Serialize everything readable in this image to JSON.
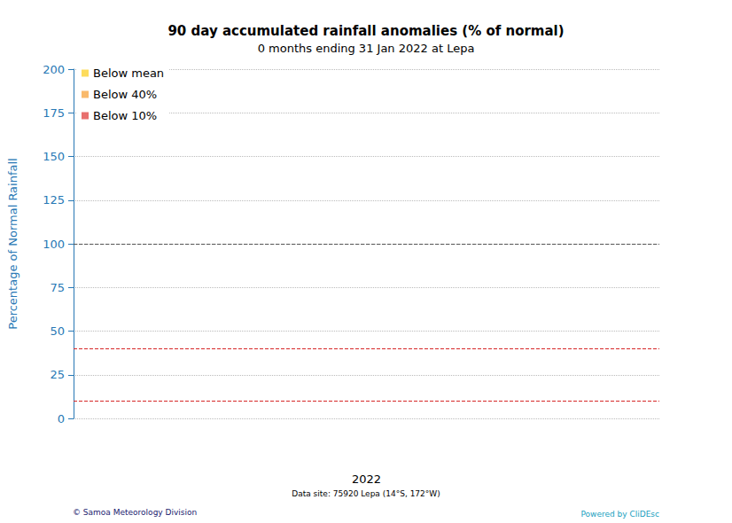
{
  "chart_data": {
    "type": "bar",
    "title": "90 day accumulated rainfall anomalies (% of normal)",
    "subtitle": "0 months ending 31 Jan 2022 at Lepa",
    "ylabel": "Percentage of Normal Rainfall",
    "categories": [
      "2022"
    ],
    "series": [
      {
        "name": "Below mean",
        "color": "#fddc5c",
        "values": [
          null
        ]
      },
      {
        "name": "Below 40%",
        "color": "#f9b96b",
        "values": [
          null
        ]
      },
      {
        "name": "Below 10%",
        "color": "#e8706e",
        "values": [
          null
        ]
      }
    ],
    "reference_lines": [
      {
        "value": 100,
        "color": "#555555",
        "line_style": "dashed"
      },
      {
        "value": 40,
        "color": "#d62728",
        "line_style": "dashed"
      },
      {
        "value": 10,
        "color": "#d62728",
        "line_style": "dashed"
      }
    ],
    "ylim": [
      0,
      200
    ],
    "yticks": [
      0,
      25,
      50,
      75,
      100,
      125,
      150,
      175,
      200
    ],
    "grid": true,
    "legend": "upper left",
    "annotations": [
      "Data site: 75920 Lepa (14°S, 172°W)",
      "© Samoa Meteorology Division",
      "Powered by CliDEsc"
    ]
  }
}
